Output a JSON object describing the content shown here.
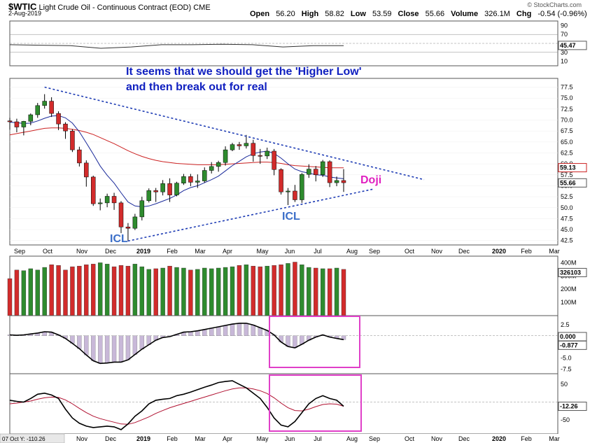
{
  "header": {
    "symbol": "$WTIC",
    "name": "Light Crude Oil - Continuous Contract (EOD) CME",
    "date": "2-Aug-2019",
    "brand": "© StockCharts.com",
    "open_label": "Open",
    "open": "56.20",
    "high_label": "High",
    "high": "58.82",
    "low_label": "Low",
    "low": "53.59",
    "close_label": "Close",
    "close": "55.66",
    "volume_label": "Volume",
    "volume": "326.1M",
    "chg_label": "Chg",
    "chg": "-0.54 (-0.96%)"
  },
  "colors": {
    "up": "#2e8b2e",
    "down": "#d22b2b",
    "ma_short": "#1a2a9a",
    "ma_long": "#cc2222",
    "annotation": "#1020c0",
    "doji": "#e020c0",
    "icl": "#3b6ec8",
    "box": "#e040c8"
  },
  "annotations": {
    "note_line1": "It seems that we should get the 'Higher Low'",
    "note_line2": "and then break out for real",
    "doji": "Doji",
    "icl": "ICL"
  },
  "chart_data": [
    {
      "type": "line",
      "name_panel": "rsi",
      "x": [
        "2018-09",
        "2018-10",
        "2018-11",
        "2018-12",
        "2019-01",
        "2019-02",
        "2019-03",
        "2019-04",
        "2019-05",
        "2019-06",
        "2019-07",
        "2019-08"
      ],
      "values": [
        47,
        46,
        45,
        39,
        42,
        47,
        47,
        48,
        47,
        42,
        45,
        45
      ],
      "yticks": [
        "90",
        "70",
        "50",
        "30",
        "10"
      ],
      "ylim": [
        0,
        100
      ],
      "last_label": "45.47"
    },
    {
      "type": "candlestick",
      "name_panel": "price",
      "x": [
        "2018-08-31",
        "2018-09-07",
        "2018-09-14",
        "2018-09-21",
        "2018-09-28",
        "2018-10-05",
        "2018-10-12",
        "2018-10-19",
        "2018-10-26",
        "2018-11-02",
        "2018-11-09",
        "2018-11-16",
        "2018-11-23",
        "2018-11-30",
        "2018-12-07",
        "2018-12-14",
        "2018-12-21",
        "2018-12-28",
        "2019-01-04",
        "2019-01-11",
        "2019-01-18",
        "2019-01-25",
        "2019-02-01",
        "2019-02-08",
        "2019-02-15",
        "2019-02-22",
        "2019-03-01",
        "2019-03-08",
        "2019-03-15",
        "2019-03-22",
        "2019-03-29",
        "2019-04-05",
        "2019-04-12",
        "2019-04-19",
        "2019-04-26",
        "2019-05-03",
        "2019-05-10",
        "2019-05-17",
        "2019-05-24",
        "2019-05-31",
        "2019-06-07",
        "2019-06-14",
        "2019-06-21",
        "2019-06-28",
        "2019-07-05",
        "2019-07-12",
        "2019-07-19",
        "2019-07-26",
        "2019-08-02"
      ],
      "open": [
        69.8,
        69.6,
        68.4,
        69.7,
        71.2,
        73.3,
        74.3,
        71.5,
        69.1,
        67.5,
        63.2,
        60.2,
        57.0,
        50.9,
        51.1,
        52.6,
        51.1,
        45.6,
        45.3,
        47.9,
        51.6,
        53.9,
        53.6,
        55.5,
        52.9,
        55.6,
        57.1,
        55.8,
        56.1,
        58.5,
        59.4,
        60.3,
        63.2,
        64.4,
        64.1,
        64.7,
        61.9,
        61.8,
        62.9,
        58.7,
        53.6,
        53.8,
        51.8,
        57.6,
        58.8,
        57.5,
        60.5,
        55.7,
        56.2
      ],
      "high": [
        70.5,
        70.3,
        69.8,
        71.5,
        73.9,
        75.9,
        75.2,
        72.0,
        69.5,
        67.9,
        63.9,
        60.8,
        57.3,
        52.1,
        53.2,
        53.4,
        51.5,
        46.5,
        48.6,
        52.5,
        54.4,
        54.5,
        56.3,
        56.7,
        55.9,
        57.7,
        57.7,
        57.6,
        59.2,
        60.4,
        60.7,
        64.0,
        64.8,
        65.0,
        66.6,
        65.5,
        63.4,
        63.7,
        63.4,
        59.0,
        54.5,
        55.2,
        57.9,
        59.9,
        59.5,
        60.9,
        60.8,
        57.1,
        58.8
      ],
      "low": [
        67.8,
        67.2,
        66.5,
        68.8,
        70.5,
        72.6,
        70.7,
        67.7,
        65.7,
        62.7,
        59.4,
        54.8,
        50.4,
        49.4,
        50.1,
        49.5,
        44.2,
        42.4,
        44.9,
        47.1,
        51.2,
        51.3,
        52.8,
        51.3,
        52.6,
        55.2,
        54.9,
        54.5,
        55.7,
        57.8,
        58.2,
        59.6,
        62.9,
        63.2,
        63.5,
        60.5,
        60.0,
        61.1,
        57.4,
        53.0,
        50.6,
        51.3,
        51.1,
        56.8,
        56.0,
        57.0,
        54.7,
        54.9,
        53.6
      ],
      "close": [
        69.6,
        68.4,
        69.7,
        71.2,
        73.3,
        74.3,
        71.5,
        69.1,
        67.5,
        63.2,
        60.2,
        57.0,
        50.9,
        51.1,
        52.6,
        51.1,
        45.6,
        45.3,
        47.9,
        51.6,
        53.9,
        53.6,
        55.5,
        52.9,
        55.6,
        57.1,
        55.8,
        56.1,
        58.5,
        59.4,
        60.3,
        63.2,
        64.4,
        64.1,
        64.7,
        61.9,
        61.8,
        62.9,
        58.7,
        53.6,
        53.8,
        51.8,
        57.6,
        58.8,
        57.5,
        60.5,
        55.7,
        56.2,
        55.7
      ],
      "ma_short": [
        69.5,
        69.4,
        69.2,
        69.3,
        69.8,
        70.4,
        70.9,
        71.0,
        70.5,
        69.3,
        67.3,
        64.8,
        62.2,
        59.5,
        57.4,
        55.6,
        53.4,
        51.3,
        50.4,
        50.2,
        50.4,
        50.9,
        51.5,
        52.1,
        52.9,
        53.9,
        54.6,
        55.0,
        55.7,
        56.4,
        57.2,
        58.4,
        59.6,
        60.6,
        61.6,
        62.3,
        62.7,
        62.9,
        62.4,
        61.3,
        60.0,
        58.8,
        58.2,
        57.9,
        57.5,
        57.4,
        57.0,
        56.8,
        56.6
      ],
      "ma_long": [
        66.6,
        66.9,
        67.2,
        67.5,
        67.8,
        68.1,
        68.2,
        68.2,
        68.1,
        67.9,
        67.6,
        67.2,
        66.7,
        66.0,
        65.3,
        64.6,
        63.8,
        63.0,
        62.3,
        61.7,
        61.2,
        60.8,
        60.5,
        60.3,
        60.1,
        60.0,
        59.9,
        59.8,
        59.8,
        59.8,
        59.8,
        59.9,
        60.0,
        60.1,
        60.2,
        60.3,
        60.4,
        60.4,
        60.3,
        60.1,
        59.8,
        59.6,
        59.5,
        59.4,
        59.3,
        59.2,
        59.1,
        59.1,
        59.1
      ],
      "yticks": [
        "77.5",
        "75.0",
        "72.5",
        "70.0",
        "67.5",
        "65.0",
        "62.5",
        "60.0",
        "57.5",
        "55.0",
        "52.5",
        "50.0",
        "47.5",
        "45.0",
        "42.5"
      ],
      "ylim": [
        41.5,
        79.5
      ],
      "xticks": [
        "Sep",
        "Oct",
        "Nov",
        "Dec",
        "2019",
        "Feb",
        "Mar",
        "Apr",
        "May",
        "Jun",
        "Jul",
        "Aug",
        "Sep",
        "Oct",
        "Nov",
        "Dec",
        "2020",
        "Feb",
        "Mar"
      ],
      "last_label": "55.66",
      "ma_long_label": "59.13"
    },
    {
      "type": "bar",
      "name_panel": "volume",
      "values": [
        280,
        345,
        340,
        355,
        345,
        365,
        385,
        380,
        345,
        370,
        375,
        385,
        390,
        400,
        390,
        370,
        380,
        375,
        390,
        370,
        350,
        355,
        360,
        375,
        365,
        360,
        345,
        350,
        360,
        355,
        360,
        365,
        370,
        380,
        385,
        375,
        370,
        375,
        380,
        385,
        395,
        405,
        385,
        365,
        360,
        355,
        355,
        360,
        350
      ],
      "yticks": [
        "400M",
        "300M",
        "200M",
        "100M"
      ],
      "ylim": [
        0,
        450
      ],
      "last_label": "326103"
    },
    {
      "type": "bar",
      "name_panel": "macd-histogram",
      "values": [
        0.2,
        0.1,
        0.2,
        0.4,
        0.6,
        0.9,
        0.8,
        0.2,
        -0.6,
        -1.7,
        -2.9,
        -4.3,
        -5.6,
        -6.2,
        -6.1,
        -5.9,
        -5.9,
        -5.4,
        -4.2,
        -3.0,
        -2.0,
        -1.0,
        -0.4,
        -0.2,
        0.3,
        0.8,
        0.9,
        1.1,
        1.4,
        1.7,
        2.0,
        2.3,
        2.6,
        2.8,
        2.8,
        2.4,
        1.8,
        1.2,
        0.2,
        -1.4,
        -2.4,
        -2.7,
        -1.9,
        -1.0,
        -0.3,
        0.2,
        -0.3,
        -0.6,
        -0.88
      ],
      "yticks": [
        "2.5",
        "-2.5",
        "-5.0",
        "-7.5"
      ],
      "ylim": [
        -8.5,
        4.5
      ],
      "last_label": "-0.877",
      "mid_label": "0.000"
    },
    {
      "type": "line",
      "name_panel": "oscillator",
      "values": [
        5,
        2,
        0,
        10,
        22,
        25,
        20,
        10,
        -20,
        -45,
        -60,
        -68,
        -72,
        -70,
        -68,
        -70,
        -78,
        -62,
        -40,
        -25,
        -5,
        5,
        8,
        10,
        18,
        22,
        28,
        35,
        42,
        48,
        55,
        58,
        60,
        50,
        40,
        25,
        10,
        -15,
        -45,
        -65,
        -70,
        -55,
        -30,
        -5,
        10,
        18,
        10,
        5,
        -12
      ],
      "signal": [
        -5,
        -3,
        0,
        3,
        8,
        12,
        14,
        13,
        6,
        -5,
        -18,
        -30,
        -40,
        -47,
        -52,
        -57,
        -62,
        -63,
        -58,
        -50,
        -42,
        -32,
        -24,
        -16,
        -10,
        -4,
        2,
        8,
        14,
        20,
        26,
        32,
        37,
        40,
        40,
        37,
        32,
        24,
        12,
        -3,
        -16,
        -24,
        -25,
        -20,
        -13,
        -7,
        -5,
        -6,
        -12
      ],
      "yticks": [
        "50",
        "-50"
      ],
      "ylim": [
        -90,
        80
      ],
      "last_label": "-12.26",
      "footer_label": "07 Oct Y: -110.26"
    }
  ]
}
